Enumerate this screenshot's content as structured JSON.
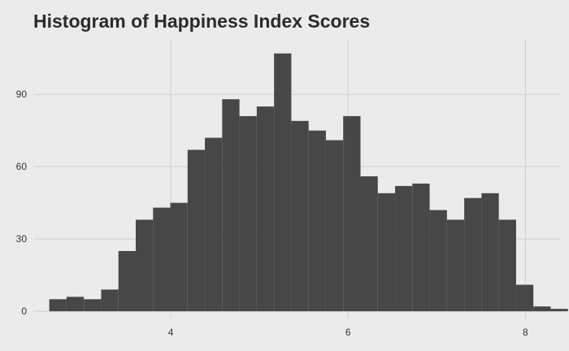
{
  "chart_data": {
    "type": "bar",
    "title": "Histogram of Happiness Index Scores",
    "subtitle": "",
    "xlabel": "",
    "ylabel": "",
    "xlim": [
      2.45,
      8.4
    ],
    "ylim": [
      -3,
      113
    ],
    "x_ticks": [
      4,
      6,
      8
    ],
    "y_ticks": [
      0,
      30,
      60,
      90
    ],
    "grid": true,
    "bar_color": "#474747",
    "grid_color": "#cfcfcf",
    "background_color": "#ebebeb",
    "bins": {
      "start": 2.63,
      "width": 0.195
    },
    "values": [
      5,
      6,
      5,
      9,
      25,
      38,
      43,
      45,
      67,
      72,
      88,
      81,
      85,
      107,
      79,
      75,
      71,
      81,
      56,
      49,
      52,
      53,
      42,
      38,
      47,
      49,
      38,
      11,
      2,
      1
    ]
  }
}
